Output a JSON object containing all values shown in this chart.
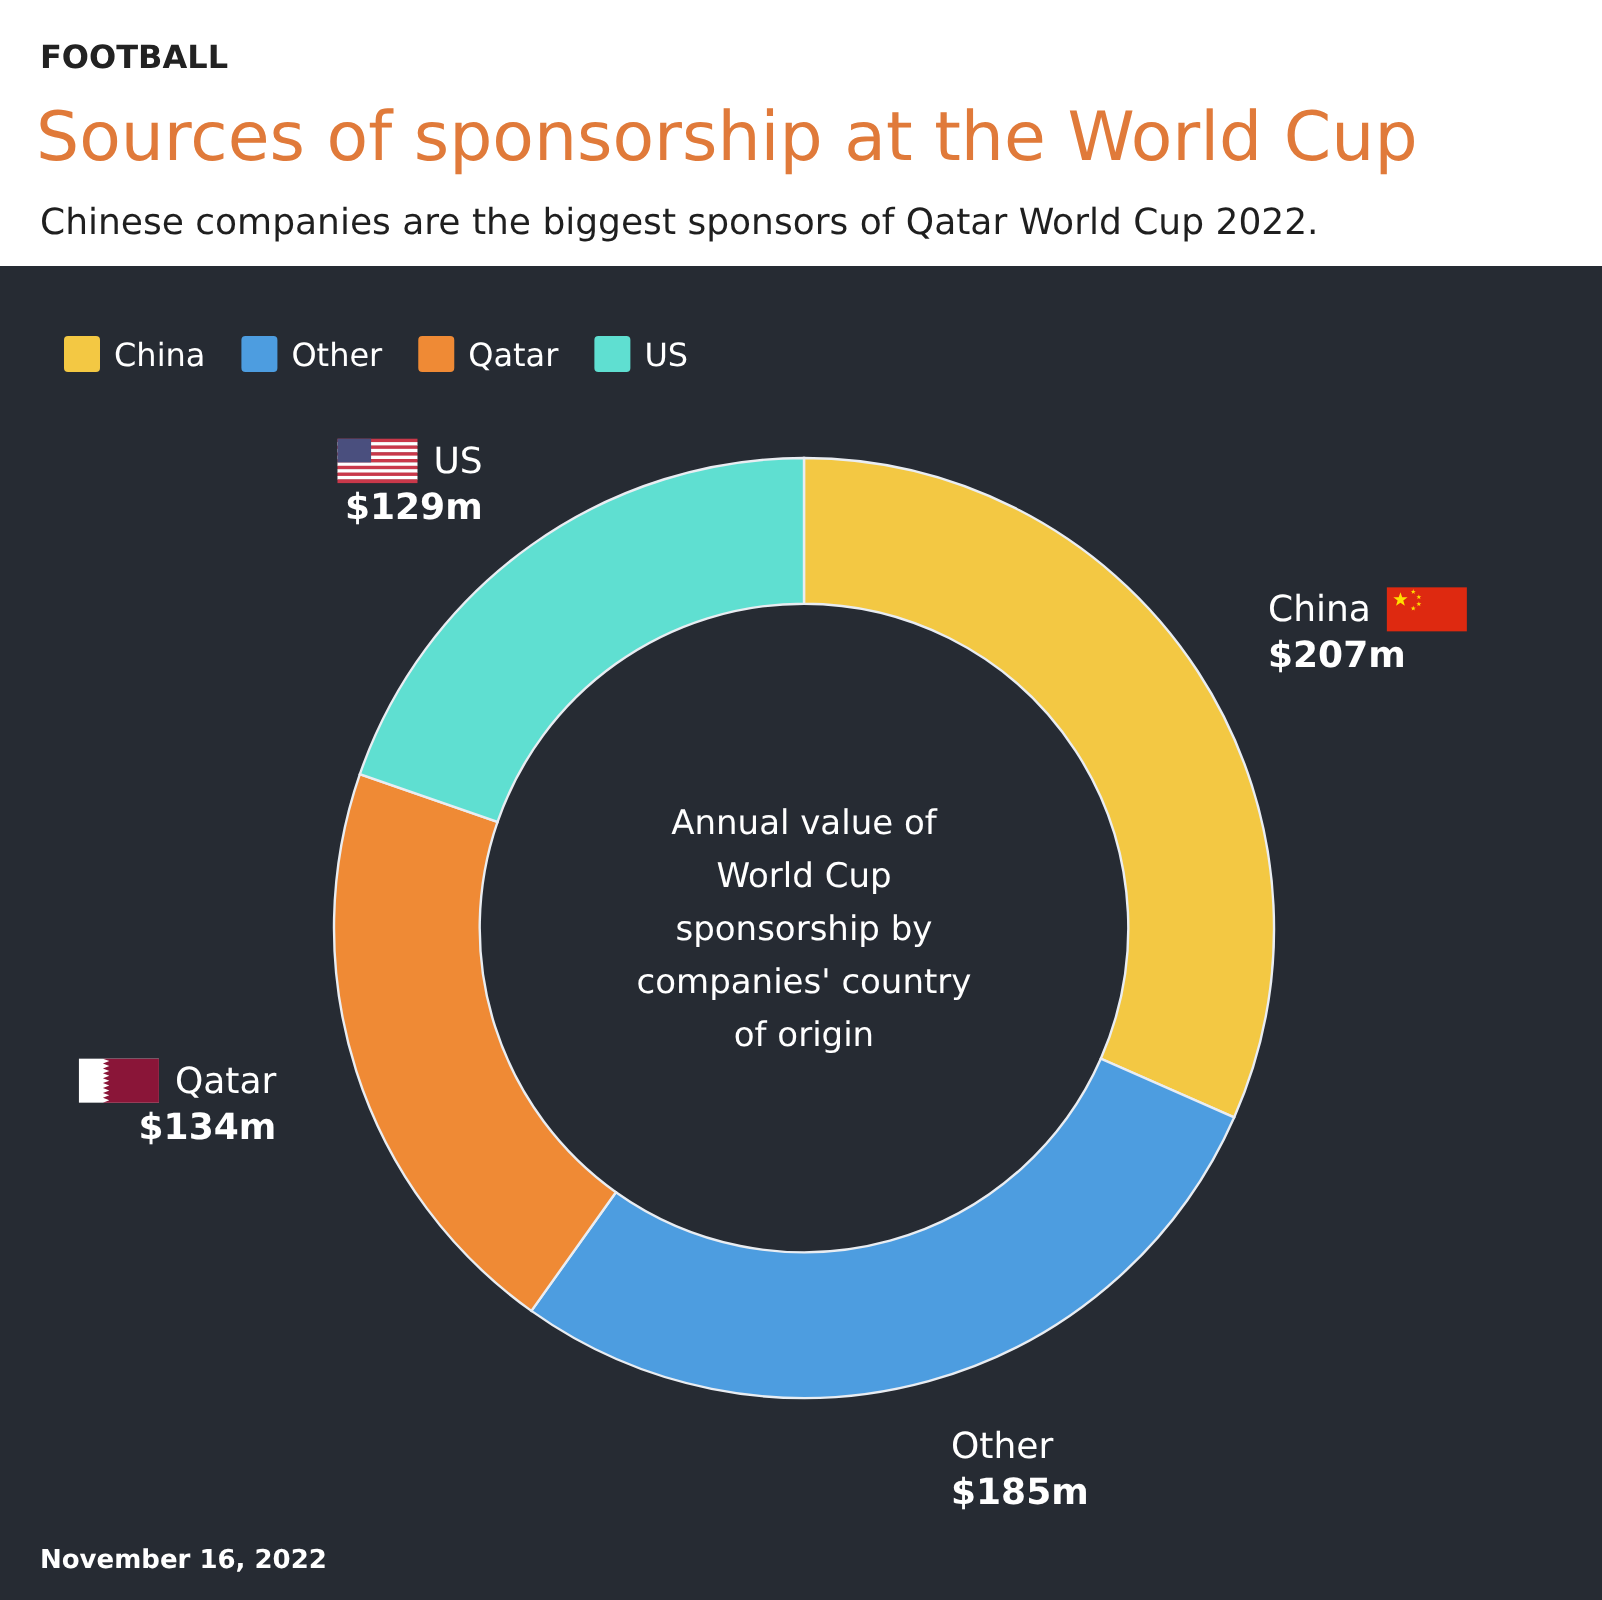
{
  "chart_data": {
    "type": "donut",
    "title": "Sources of sponsorship at the World Cup",
    "subtitle": "Chinese companies are the biggest sponsors of Qatar World Cup 2022.",
    "categories": [
      "China",
      "Other",
      "Qatar",
      "US"
    ],
    "values": [
      207,
      185,
      134,
      129
    ],
    "value_labels": [
      "$207m",
      "$185m",
      "$134m",
      "$129m"
    ],
    "colors": [
      "#f3c843",
      "#4d9de0",
      "#ef8a35",
      "#5fdfd1"
    ],
    "legend": "top left",
    "annotations": [
      "FOOTBALL",
      "Annual value of World Cup sponsorship by companies' country of origin",
      "November 16, 2022"
    ]
  }
}
